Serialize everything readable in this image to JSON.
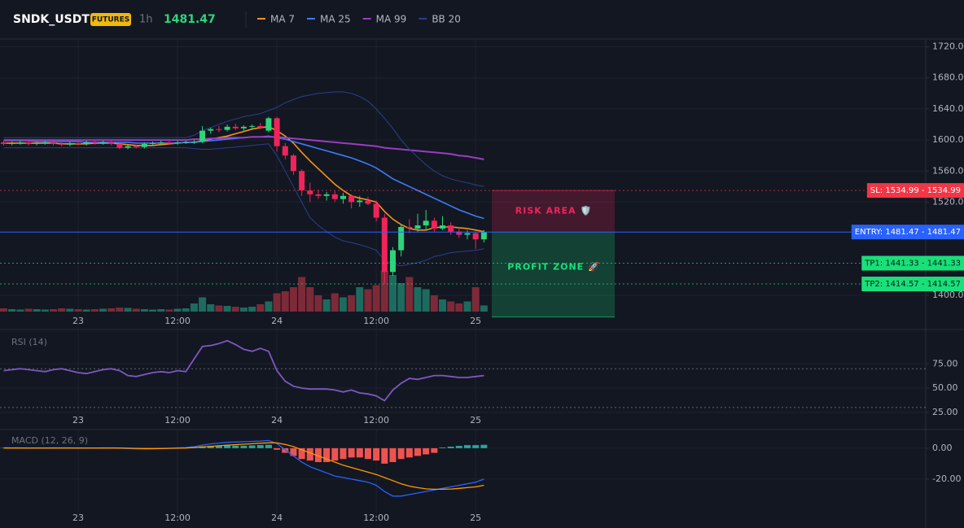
{
  "header": {
    "symbol": "SNDK_USDT",
    "badge": "FUTURES",
    "interval": "1h"
  },
  "orders": [
    {
      "value": 1534.99,
      "label": "SL: 1534.99 - 1534.99",
      "color": "#f23645",
      "style": "dotted"
    },
    {
      "value": 1481.47,
      "label": "ENTRY: 1481.47 - 1481.47",
      "color": "#2962ff",
      "style": "solid"
    },
    {
      "value": 1441.33,
      "label": "TP1: 1441.33 - 1441.33",
      "color": "#19e07a",
      "style": "dotted"
    },
    {
      "value": 1414.57,
      "label": "TP2: 1414.57 - 1414.57",
      "color": "#19e07a",
      "style": "dotted"
    }
  ],
  "zones": [
    {
      "label": "RISK AREA 🛡️",
      "from": 1481.47,
      "to": 1534.99,
      "color": "#f0245a"
    },
    {
      "label": "PROFIT ZONE 🚀",
      "from": 1481.47,
      "to": 1372,
      "color": "#19e07a"
    }
  ],
  "chart_data": [
    {
      "type": "candlestick",
      "categories": [
        null,
        null,
        null,
        null,
        null,
        null,
        null,
        null,
        null,
        "23",
        null,
        null,
        null,
        null,
        null,
        null,
        null,
        null,
        null,
        null,
        null,
        "12:00",
        null,
        null,
        null,
        null,
        null,
        null,
        null,
        null,
        null,
        null,
        null,
        "24",
        null,
        null,
        null,
        null,
        null,
        null,
        null,
        null,
        null,
        null,
        null,
        "12:00",
        null,
        null,
        null,
        null,
        null,
        null,
        null,
        null,
        null,
        null,
        null,
        "25",
        null
      ],
      "open": [
        1597,
        1595,
        1596,
        1597,
        1595,
        1596,
        1597,
        1595,
        1594,
        1596,
        1595,
        1597,
        1596,
        1597,
        1595,
        1590,
        1592,
        1591,
        1595,
        1596,
        1597,
        1596,
        1597,
        1597,
        1598,
        1612,
        1614,
        1613,
        1617,
        1615,
        1617,
        1618,
        1612,
        1628,
        1592,
        1580,
        1560,
        1535,
        1530,
        1528,
        1530,
        1524,
        1528,
        1520,
        1522,
        1518,
        1500,
        1430,
        1458,
        1488,
        1486,
        1490,
        1496,
        1486,
        1490,
        1482,
        1478,
        1480,
        1472
      ],
      "high": [
        1599,
        1598,
        1599,
        1599,
        1598,
        1599,
        1599,
        1597,
        1598,
        1598,
        1599,
        1599,
        1599,
        1599,
        1597,
        1594,
        1594,
        1597,
        1598,
        1599,
        1599,
        1599,
        1599,
        1600,
        1618,
        1616,
        1618,
        1620,
        1621,
        1619,
        1620,
        1622,
        1630,
        1630,
        1596,
        1582,
        1562,
        1545,
        1536,
        1533,
        1534,
        1532,
        1530,
        1528,
        1527,
        1522,
        1505,
        1462,
        1492,
        1498,
        1505,
        1510,
        1500,
        1502,
        1494,
        1488,
        1484,
        1482,
        1484
      ],
      "low": [
        1593,
        1593,
        1594,
        1593,
        1593,
        1594,
        1593,
        1592,
        1592,
        1593,
        1593,
        1594,
        1594,
        1593,
        1588,
        1588,
        1589,
        1589,
        1593,
        1594,
        1594,
        1594,
        1595,
        1595,
        1596,
        1608,
        1610,
        1611,
        1613,
        1612,
        1614,
        1614,
        1610,
        1585,
        1575,
        1555,
        1528,
        1520,
        1524,
        1522,
        1520,
        1518,
        1512,
        1514,
        1516,
        1495,
        1415,
        1425,
        1450,
        1480,
        1482,
        1484,
        1482,
        1484,
        1478,
        1474,
        1472,
        1460,
        1468
      ],
      "close": [
        1595,
        1596,
        1597,
        1595,
        1596,
        1597,
        1595,
        1594,
        1596,
        1595,
        1597,
        1596,
        1597,
        1595,
        1590,
        1592,
        1591,
        1595,
        1596,
        1597,
        1596,
        1597,
        1597,
        1598,
        1612,
        1614,
        1613,
        1617,
        1615,
        1617,
        1618,
        1616,
        1628,
        1592,
        1580,
        1560,
        1535,
        1530,
        1528,
        1530,
        1524,
        1528,
        1520,
        1522,
        1518,
        1500,
        1430,
        1458,
        1488,
        1486,
        1490,
        1496,
        1486,
        1490,
        1482,
        1478,
        1480,
        1472,
        1481.47
      ],
      "volume": [
        8,
        6,
        5,
        7,
        6,
        5,
        6,
        8,
        7,
        6,
        5,
        6,
        7,
        8,
        10,
        9,
        7,
        6,
        5,
        6,
        5,
        7,
        8,
        20,
        35,
        18,
        15,
        14,
        12,
        10,
        12,
        18,
        25,
        45,
        50,
        60,
        85,
        60,
        40,
        30,
        45,
        35,
        40,
        60,
        55,
        65,
        100,
        90,
        70,
        85,
        60,
        55,
        40,
        30,
        25,
        20,
        25,
        60,
        15
      ],
      "up_color": "#2ed47a",
      "down_color": "#f0245a",
      "volume_up_color": "#1d6b5f",
      "volume_down_color": "#7d2a38",
      "series": [
        {
          "name": "MA 7",
          "color": "#f7931a",
          "values": [
            1596,
            1596,
            1596,
            1596,
            1596,
            1596,
            1596,
            1595,
            1595,
            1595,
            1595,
            1596,
            1596,
            1596,
            1595,
            1594,
            1593,
            1593,
            1593,
            1594,
            1595,
            1596,
            1597,
            1597,
            1599,
            1601,
            1603,
            1605,
            1608,
            1611,
            1614,
            1616,
            1617,
            1612,
            1605,
            1596,
            1584,
            1573,
            1563,
            1553,
            1543,
            1535,
            1528,
            1525,
            1523,
            1520,
            1508,
            1498,
            1491,
            1486,
            1484,
            1484,
            1487,
            1488,
            1488,
            1487,
            1486,
            1484,
            1482
          ]
        },
        {
          "name": "MA 25",
          "color": "#3d7bf7",
          "values": [
            1599,
            1599,
            1599,
            1599,
            1598,
            1598,
            1598,
            1598,
            1598,
            1598,
            1597,
            1597,
            1597,
            1597,
            1597,
            1597,
            1596,
            1596,
            1596,
            1596,
            1596,
            1596,
            1597,
            1597,
            1598,
            1599,
            1600,
            1601,
            1602,
            1603,
            1604,
            1604,
            1605,
            1603,
            1601,
            1598,
            1595,
            1592,
            1589,
            1586,
            1583,
            1580,
            1577,
            1573,
            1569,
            1564,
            1557,
            1550,
            1545,
            1540,
            1535,
            1530,
            1525,
            1520,
            1515,
            1510,
            1506,
            1502,
            1499
          ]
        },
        {
          "name": "MA 99",
          "color": "#9c3cc0",
          "values": [
            1600,
            1600,
            1600,
            1600,
            1600,
            1600,
            1600,
            1600,
            1600,
            1600,
            1600,
            1600,
            1600,
            1600,
            1600,
            1600,
            1600,
            1600,
            1600,
            1600,
            1600,
            1600,
            1600,
            1601,
            1601,
            1602,
            1602,
            1603,
            1603,
            1603,
            1604,
            1604,
            1604,
            1604,
            1603,
            1602,
            1601,
            1600,
            1599,
            1598,
            1597,
            1596,
            1595,
            1594,
            1593,
            1592,
            1590,
            1589,
            1588,
            1587,
            1586,
            1585,
            1584,
            1583,
            1582,
            1580,
            1579,
            1577,
            1575
          ]
        },
        {
          "name": "BB 20",
          "color": "#2c3f8c",
          "upper": [
            1603,
            1603,
            1603,
            1603,
            1603,
            1603,
            1603,
            1603,
            1603,
            1603,
            1603,
            1603,
            1603,
            1603,
            1603,
            1603,
            1603,
            1603,
            1603,
            1603,
            1603,
            1603,
            1603,
            1606,
            1612,
            1616,
            1620,
            1624,
            1627,
            1630,
            1632,
            1634,
            1638,
            1642,
            1648,
            1652,
            1656,
            1658,
            1660,
            1661,
            1662,
            1662,
            1660,
            1656,
            1650,
            1640,
            1628,
            1615,
            1600,
            1588,
            1578,
            1568,
            1560,
            1554,
            1550,
            1547,
            1545,
            1542,
            1540
          ],
          "lower": [
            1590,
            1590,
            1590,
            1590,
            1590,
            1590,
            1590,
            1590,
            1590,
            1590,
            1590,
            1590,
            1590,
            1590,
            1590,
            1590,
            1590,
            1590,
            1590,
            1590,
            1590,
            1590,
            1590,
            1589,
            1588,
            1588,
            1589,
            1590,
            1591,
            1592,
            1593,
            1594,
            1595,
            1580,
            1560,
            1540,
            1520,
            1500,
            1490,
            1482,
            1475,
            1470,
            1468,
            1465,
            1462,
            1458,
            1445,
            1440,
            1438,
            1440,
            1442,
            1445,
            1450,
            1452,
            1455,
            1456,
            1457,
            1458,
            1460
          ]
        }
      ],
      "ylim": [
        1379,
        1730
      ],
      "yticks": [
        {
          "value": 1400,
          "label": "1400.00"
        },
        {
          "value": 1520,
          "label": "1520.00"
        },
        {
          "value": 1560,
          "label": "1560.00"
        },
        {
          "value": 1600,
          "label": "1600.00"
        },
        {
          "value": 1640,
          "label": "1640.00"
        },
        {
          "value": 1680,
          "label": "1680.00"
        },
        {
          "value": 1720,
          "label": "1720.00"
        }
      ],
      "grid": true
    },
    {
      "type": "line",
      "title": "RSI (14)",
      "color": "#7e57c2",
      "values": [
        68,
        69,
        70,
        69,
        68,
        67,
        69,
        70,
        68,
        66,
        65,
        67,
        69,
        70,
        68,
        63,
        62,
        64,
        66,
        67,
        66,
        68,
        67,
        80,
        93,
        94,
        96,
        99,
        95,
        90,
        88,
        91,
        88,
        68,
        57,
        52,
        50,
        49,
        49,
        49,
        48,
        46,
        48,
        45,
        44,
        42,
        37,
        48,
        55,
        60,
        59,
        61,
        63,
        63,
        62,
        61,
        61,
        62,
        63
      ],
      "levels": [
        70,
        30
      ],
      "ylim": [
        24,
        108
      ],
      "yticks": [
        {
          "value": 75,
          "label": "75.00"
        },
        {
          "value": 50,
          "label": "50.00"
        },
        {
          "value": 25,
          "label": "25.00"
        }
      ],
      "grid": true
    },
    {
      "type": "macd",
      "title": "MACD (12, 26, 9)",
      "histogram": [
        0.2,
        0.1,
        0,
        -0.1,
        0,
        0.1,
        0.2,
        0.1,
        0,
        -0.1,
        0,
        0.1,
        0.1,
        0,
        -0.2,
        -0.4,
        -0.3,
        -0.2,
        0,
        0.1,
        0.2,
        0.1,
        0.2,
        0.6,
        1.2,
        1.5,
        1.6,
        1.8,
        1.7,
        1.6,
        1.8,
        2,
        2.2,
        -1,
        -3,
        -5,
        -7,
        -8,
        -9,
        -9,
        -8,
        -7,
        -6,
        -6,
        -7,
        -8,
        -10,
        -9,
        -7,
        -6,
        -5,
        -4,
        -3,
        0.5,
        1,
        1.5,
        2,
        2,
        2.2
      ],
      "up_color": "#26a69a",
      "down_color": "#ef5350",
      "lines": [
        {
          "color": "#2962ff",
          "values": [
            0.3,
            0.2,
            0.2,
            0.1,
            0.1,
            0.1,
            0.2,
            0.2,
            0.2,
            0.1,
            0.1,
            0.1,
            0.2,
            0.2,
            0.1,
            -0.2,
            -0.4,
            -0.5,
            -0.4,
            -0.2,
            0,
            0.2,
            0.4,
            1,
            2,
            2.8,
            3.3,
            3.8,
            4,
            4.2,
            4.4,
            4.6,
            5,
            3,
            -1,
            -5,
            -9,
            -12,
            -14,
            -16,
            -18,
            -19,
            -20,
            -21,
            -22,
            -24,
            -28,
            -31,
            -31,
            -30,
            -29,
            -28,
            -27,
            -26,
            -25,
            -24,
            -23,
            -22,
            -20
          ]
        },
        {
          "color": "#ff9800",
          "values": [
            0.1,
            0.1,
            0.1,
            0.1,
            0.1,
            0.1,
            0.1,
            0.1,
            0.1,
            0.1,
            0.1,
            0.1,
            0.1,
            0.1,
            0.1,
            0,
            -0.1,
            -0.2,
            -0.2,
            -0.2,
            -0.1,
            0,
            0.1,
            0.4,
            0.8,
            1.2,
            1.6,
            2,
            2.3,
            2.6,
            2.9,
            3.2,
            3.5,
            3.4,
            2.4,
            1,
            -1,
            -3,
            -5,
            -7,
            -9,
            -11,
            -12.5,
            -14,
            -15.5,
            -17,
            -19,
            -21,
            -23,
            -24.5,
            -25.5,
            -26.3,
            -26.6,
            -26.6,
            -26.4,
            -26,
            -25.5,
            -25,
            -24
          ]
        }
      ],
      "ylim": [
        -39,
        11
      ],
      "yticks": [
        {
          "value": 0,
          "label": "0.00"
        },
        {
          "value": -20,
          "label": "-20.00"
        }
      ],
      "grid": true
    }
  ]
}
